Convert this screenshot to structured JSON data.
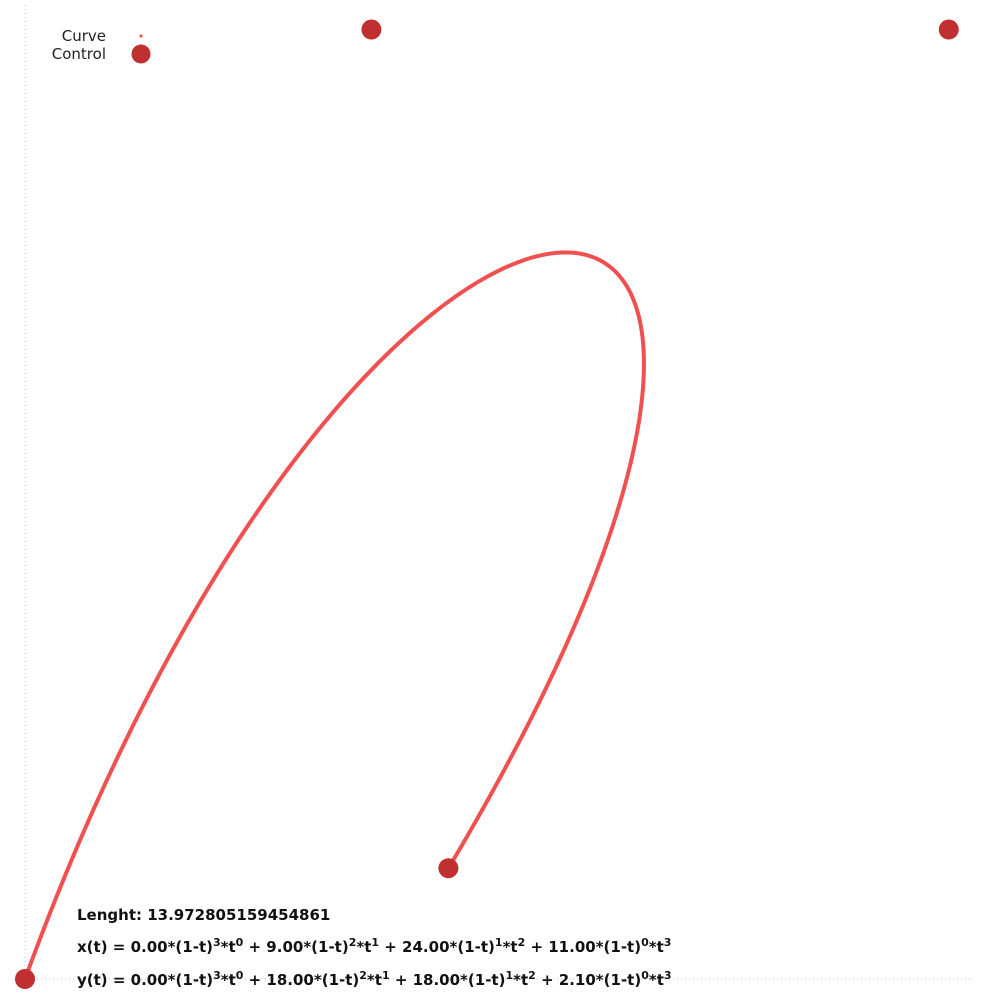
{
  "chart_data": {
    "type": "line",
    "title": "",
    "xlabel": "",
    "ylabel": "",
    "xlim": [
      0,
      24.5
    ],
    "ylim": [
      0,
      18.2
    ],
    "grid": false,
    "legend_placement": "top-left",
    "legend": [
      {
        "label": "Curve",
        "marker": "small-dot"
      },
      {
        "label": "Control",
        "marker": "large-dot"
      }
    ],
    "series": [
      {
        "name": "Curve",
        "color": "#f05050",
        "bezier_control_points": [
          {
            "x": 0.0,
            "y": 0.0
          },
          {
            "x": 9.0,
            "y": 18.0
          },
          {
            "x": 24.0,
            "y": 18.0
          },
          {
            "x": 11.0,
            "y": 2.1
          }
        ]
      },
      {
        "name": "Control",
        "color": "#c03030",
        "points": [
          {
            "x": 0.0,
            "y": 0.0
          },
          {
            "x": 9.0,
            "y": 18.0
          },
          {
            "x": 24.0,
            "y": 18.0
          },
          {
            "x": 11.0,
            "y": 2.1
          }
        ]
      }
    ],
    "annotations": {
      "length_label": "Lenght: 13.972805159454861",
      "x_formula": [
        {
          "text": "x(t) = 0.00*(1-t)"
        },
        {
          "text": "3",
          "sup": true
        },
        {
          "text": "*t"
        },
        {
          "text": "0",
          "sup": true
        },
        {
          "text": " + 9.00*(1-t)"
        },
        {
          "text": "2",
          "sup": true
        },
        {
          "text": "*t"
        },
        {
          "text": "1",
          "sup": true
        },
        {
          "text": " + 24.00*(1-t)"
        },
        {
          "text": "1",
          "sup": true
        },
        {
          "text": "*t"
        },
        {
          "text": "2",
          "sup": true
        },
        {
          "text": " + 11.00*(1-t)"
        },
        {
          "text": "0",
          "sup": true
        },
        {
          "text": "*t"
        },
        {
          "text": "3",
          "sup": true
        }
      ],
      "y_formula": [
        {
          "text": "y(t) = 0.00*(1-t)"
        },
        {
          "text": "3",
          "sup": true
        },
        {
          "text": "*t"
        },
        {
          "text": "0",
          "sup": true
        },
        {
          "text": " + 18.00*(1-t)"
        },
        {
          "text": "2",
          "sup": true
        },
        {
          "text": "*t"
        },
        {
          "text": "1",
          "sup": true
        },
        {
          "text": " + 18.00*(1-t)"
        },
        {
          "text": "1",
          "sup": true
        },
        {
          "text": "*t"
        },
        {
          "text": "2",
          "sup": true
        },
        {
          "text": " + 2.10*(1-t)"
        },
        {
          "text": "0",
          "sup": true
        },
        {
          "text": "*t"
        },
        {
          "text": "3",
          "sup": true
        }
      ]
    }
  }
}
